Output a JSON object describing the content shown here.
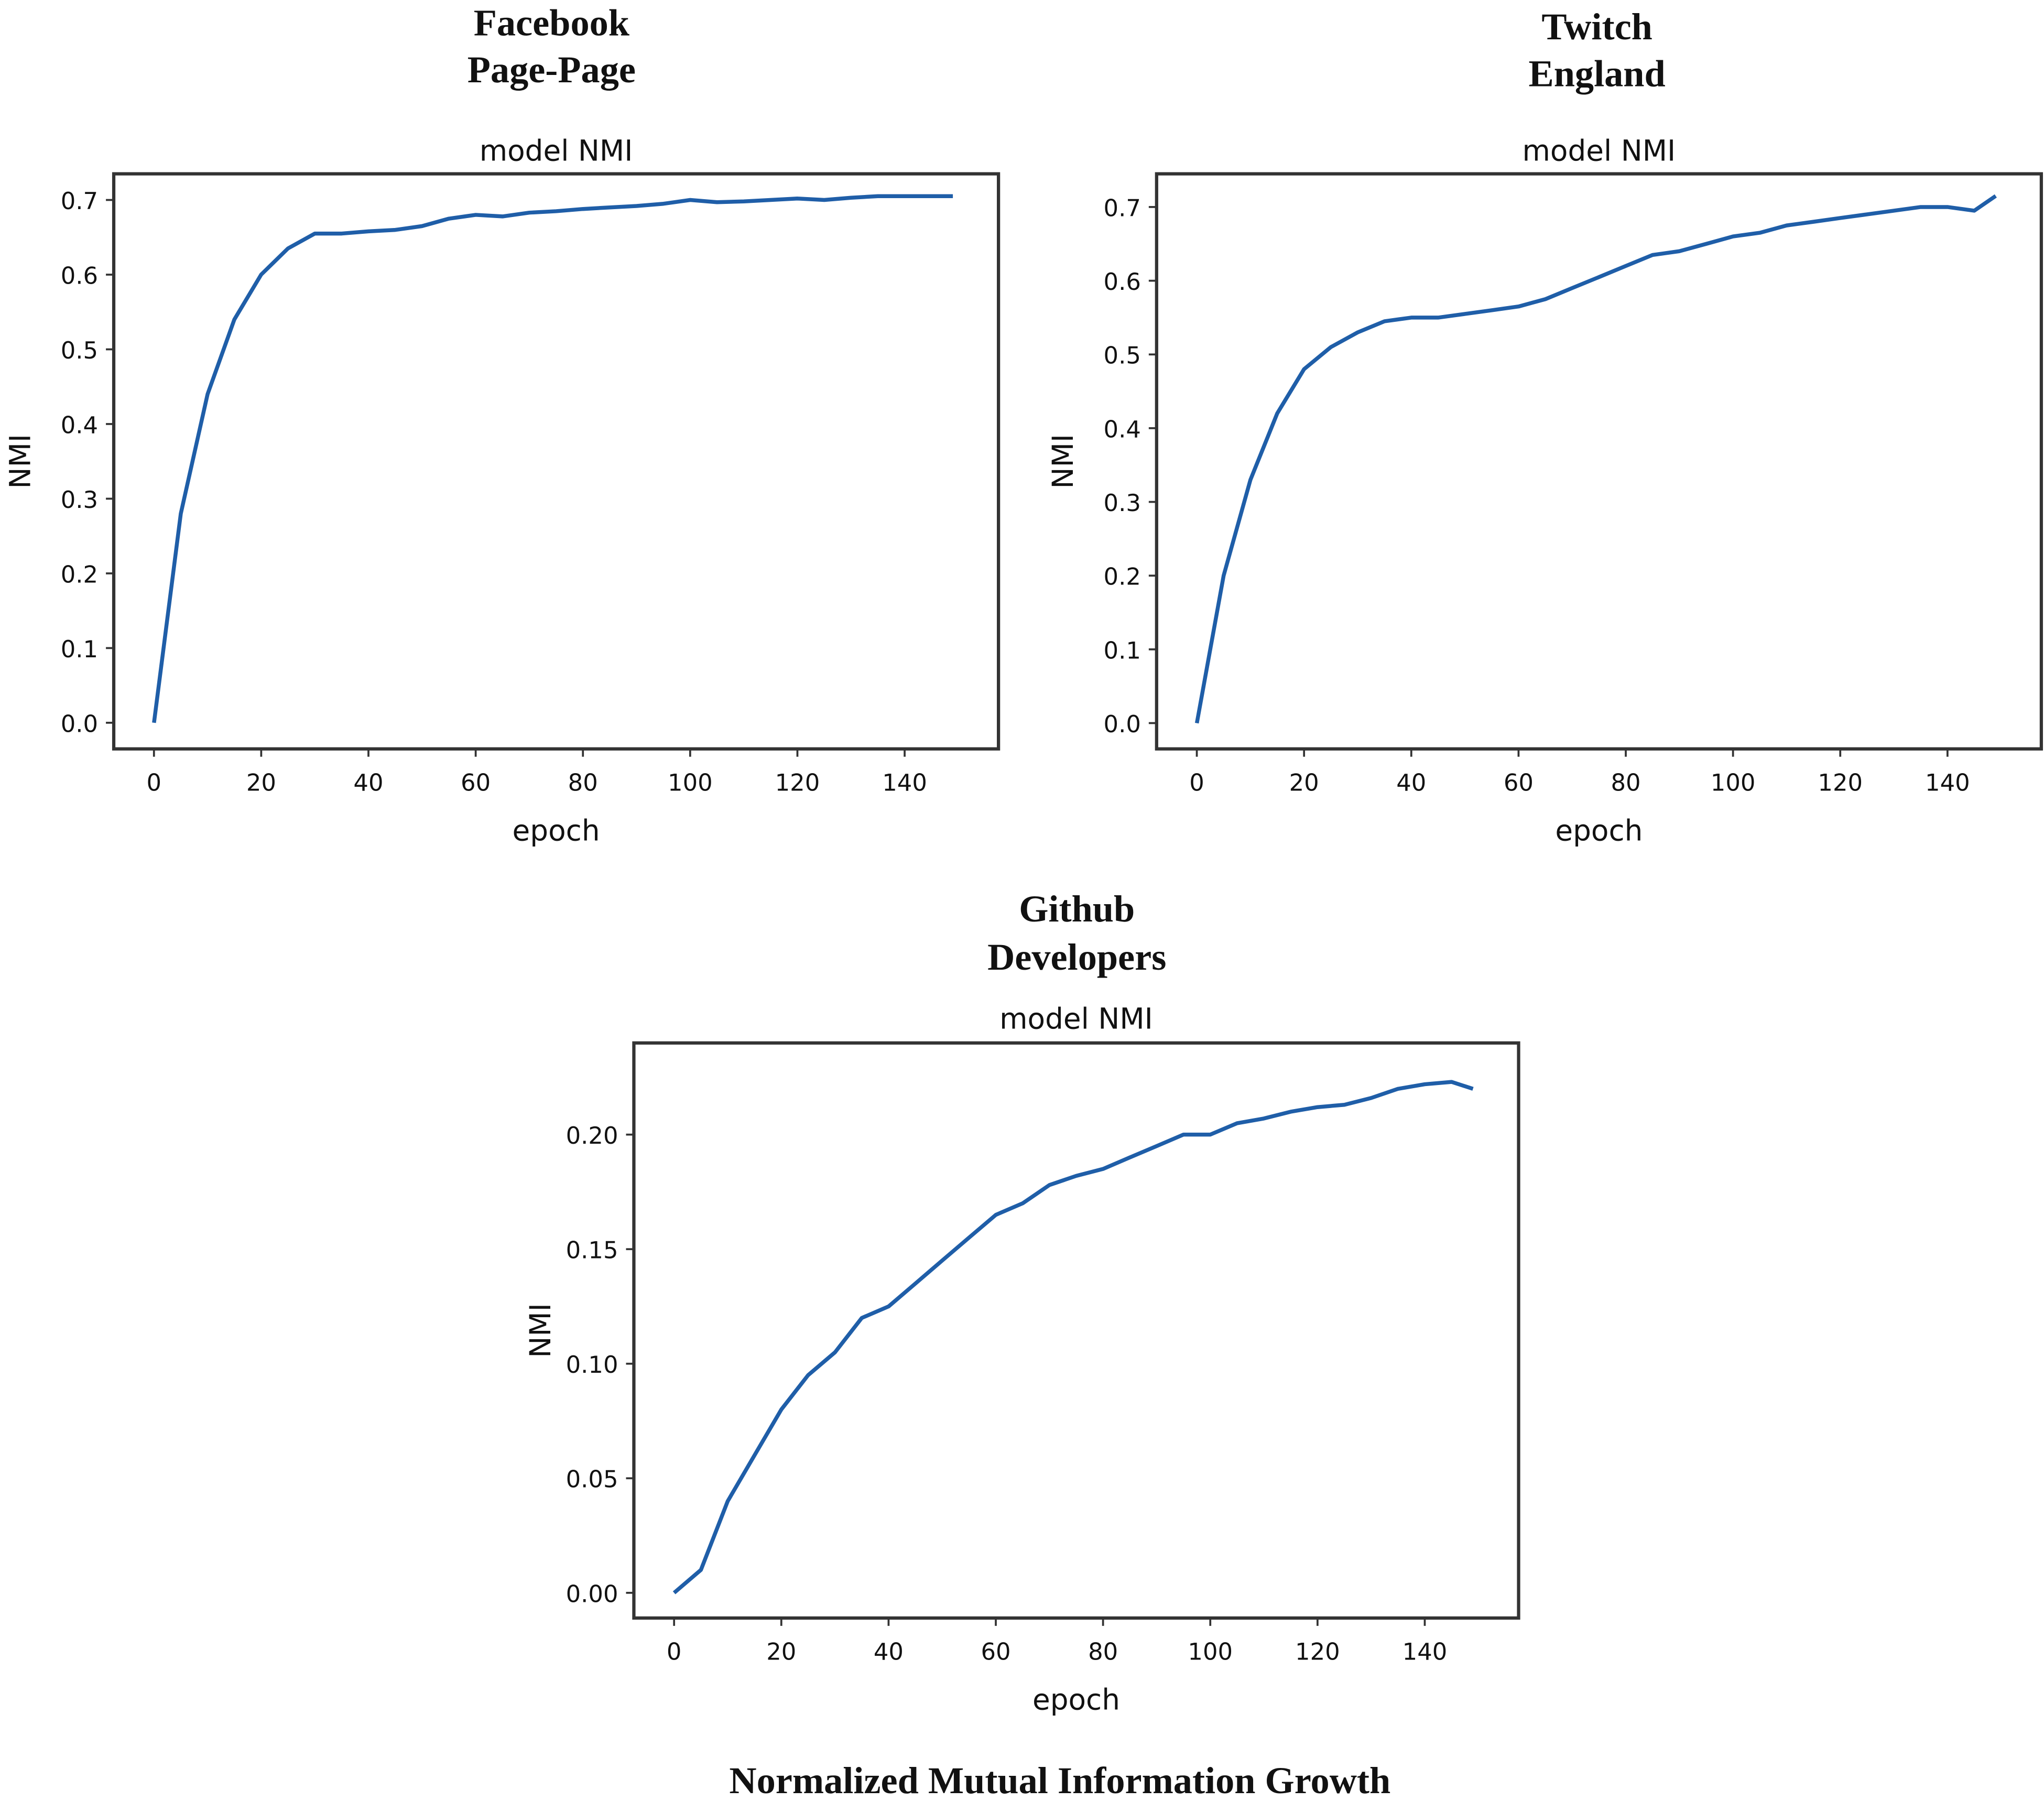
{
  "caption": "Normalized Mutual Information Growth",
  "line_color": "#1f5ea8",
  "chart_data": [
    {
      "type": "line",
      "dataset_title": [
        "Facebook",
        "Page-Page"
      ],
      "title": "model NMI",
      "xlabel": "epoch",
      "ylabel": "NMI",
      "xticks": [
        0,
        20,
        40,
        60,
        80,
        100,
        120,
        140
      ],
      "yticks": [
        "0.0",
        "0.1",
        "0.2",
        "0.3",
        "0.4",
        "0.5",
        "0.6",
        "0.7"
      ],
      "xlim": [
        -7.5,
        157.5
      ],
      "ylim": [
        -0.035,
        0.735
      ],
      "x": [
        0,
        5,
        10,
        15,
        20,
        25,
        30,
        35,
        40,
        45,
        50,
        55,
        60,
        65,
        70,
        75,
        80,
        85,
        90,
        95,
        100,
        105,
        110,
        115,
        120,
        125,
        130,
        135,
        140,
        145,
        149
      ],
      "y": [
        0,
        0.28,
        0.44,
        0.54,
        0.6,
        0.635,
        0.655,
        0.655,
        0.658,
        0.66,
        0.665,
        0.675,
        0.68,
        0.678,
        0.683,
        0.685,
        0.688,
        0.69,
        0.692,
        0.695,
        0.7,
        0.697,
        0.698,
        0.7,
        0.702,
        0.7,
        0.703,
        0.705,
        0.705,
        0.705,
        0.705
      ]
    },
    {
      "type": "line",
      "dataset_title": [
        "Twitch",
        "England"
      ],
      "title": "model NMI",
      "xlabel": "epoch",
      "ylabel": "NMI",
      "xticks": [
        0,
        20,
        40,
        60,
        80,
        100,
        120,
        140
      ],
      "yticks": [
        "0.0",
        "0.1",
        "0.2",
        "0.3",
        "0.4",
        "0.5",
        "0.6",
        "0.7"
      ],
      "xlim": [
        -7.5,
        157.5
      ],
      "ylim": [
        -0.035,
        0.745
      ],
      "x": [
        0,
        5,
        10,
        15,
        20,
        25,
        30,
        35,
        40,
        45,
        50,
        55,
        60,
        65,
        70,
        75,
        80,
        85,
        90,
        95,
        100,
        105,
        110,
        115,
        120,
        125,
        130,
        135,
        140,
        145,
        149
      ],
      "y": [
        0,
        0.2,
        0.33,
        0.42,
        0.48,
        0.51,
        0.53,
        0.545,
        0.55,
        0.55,
        0.555,
        0.56,
        0.565,
        0.575,
        0.59,
        0.605,
        0.62,
        0.635,
        0.64,
        0.65,
        0.66,
        0.665,
        0.675,
        0.68,
        0.685,
        0.69,
        0.695,
        0.7,
        0.7,
        0.695,
        0.715
      ]
    },
    {
      "type": "line",
      "dataset_title": [
        "Github",
        "Developers"
      ],
      "title": "model NMI",
      "xlabel": "epoch",
      "ylabel": "NMI",
      "xticks": [
        0,
        20,
        40,
        60,
        80,
        100,
        120,
        140
      ],
      "yticks": [
        "0.00",
        "0.05",
        "0.10",
        "0.15",
        "0.20"
      ],
      "xlim": [
        -7.5,
        157.5
      ],
      "ylim": [
        -0.011,
        0.24
      ],
      "x": [
        0,
        5,
        10,
        15,
        20,
        25,
        30,
        35,
        40,
        45,
        50,
        55,
        60,
        65,
        70,
        75,
        80,
        85,
        90,
        95,
        100,
        105,
        110,
        115,
        120,
        125,
        130,
        135,
        140,
        145,
        149
      ],
      "y": [
        0,
        0.01,
        0.04,
        0.06,
        0.08,
        0.095,
        0.105,
        0.12,
        0.125,
        0.135,
        0.145,
        0.155,
        0.165,
        0.17,
        0.178,
        0.182,
        0.185,
        0.19,
        0.195,
        0.2,
        0.2,
        0.205,
        0.207,
        0.21,
        0.212,
        0.213,
        0.216,
        0.22,
        0.222,
        0.223,
        0.22
      ]
    }
  ]
}
